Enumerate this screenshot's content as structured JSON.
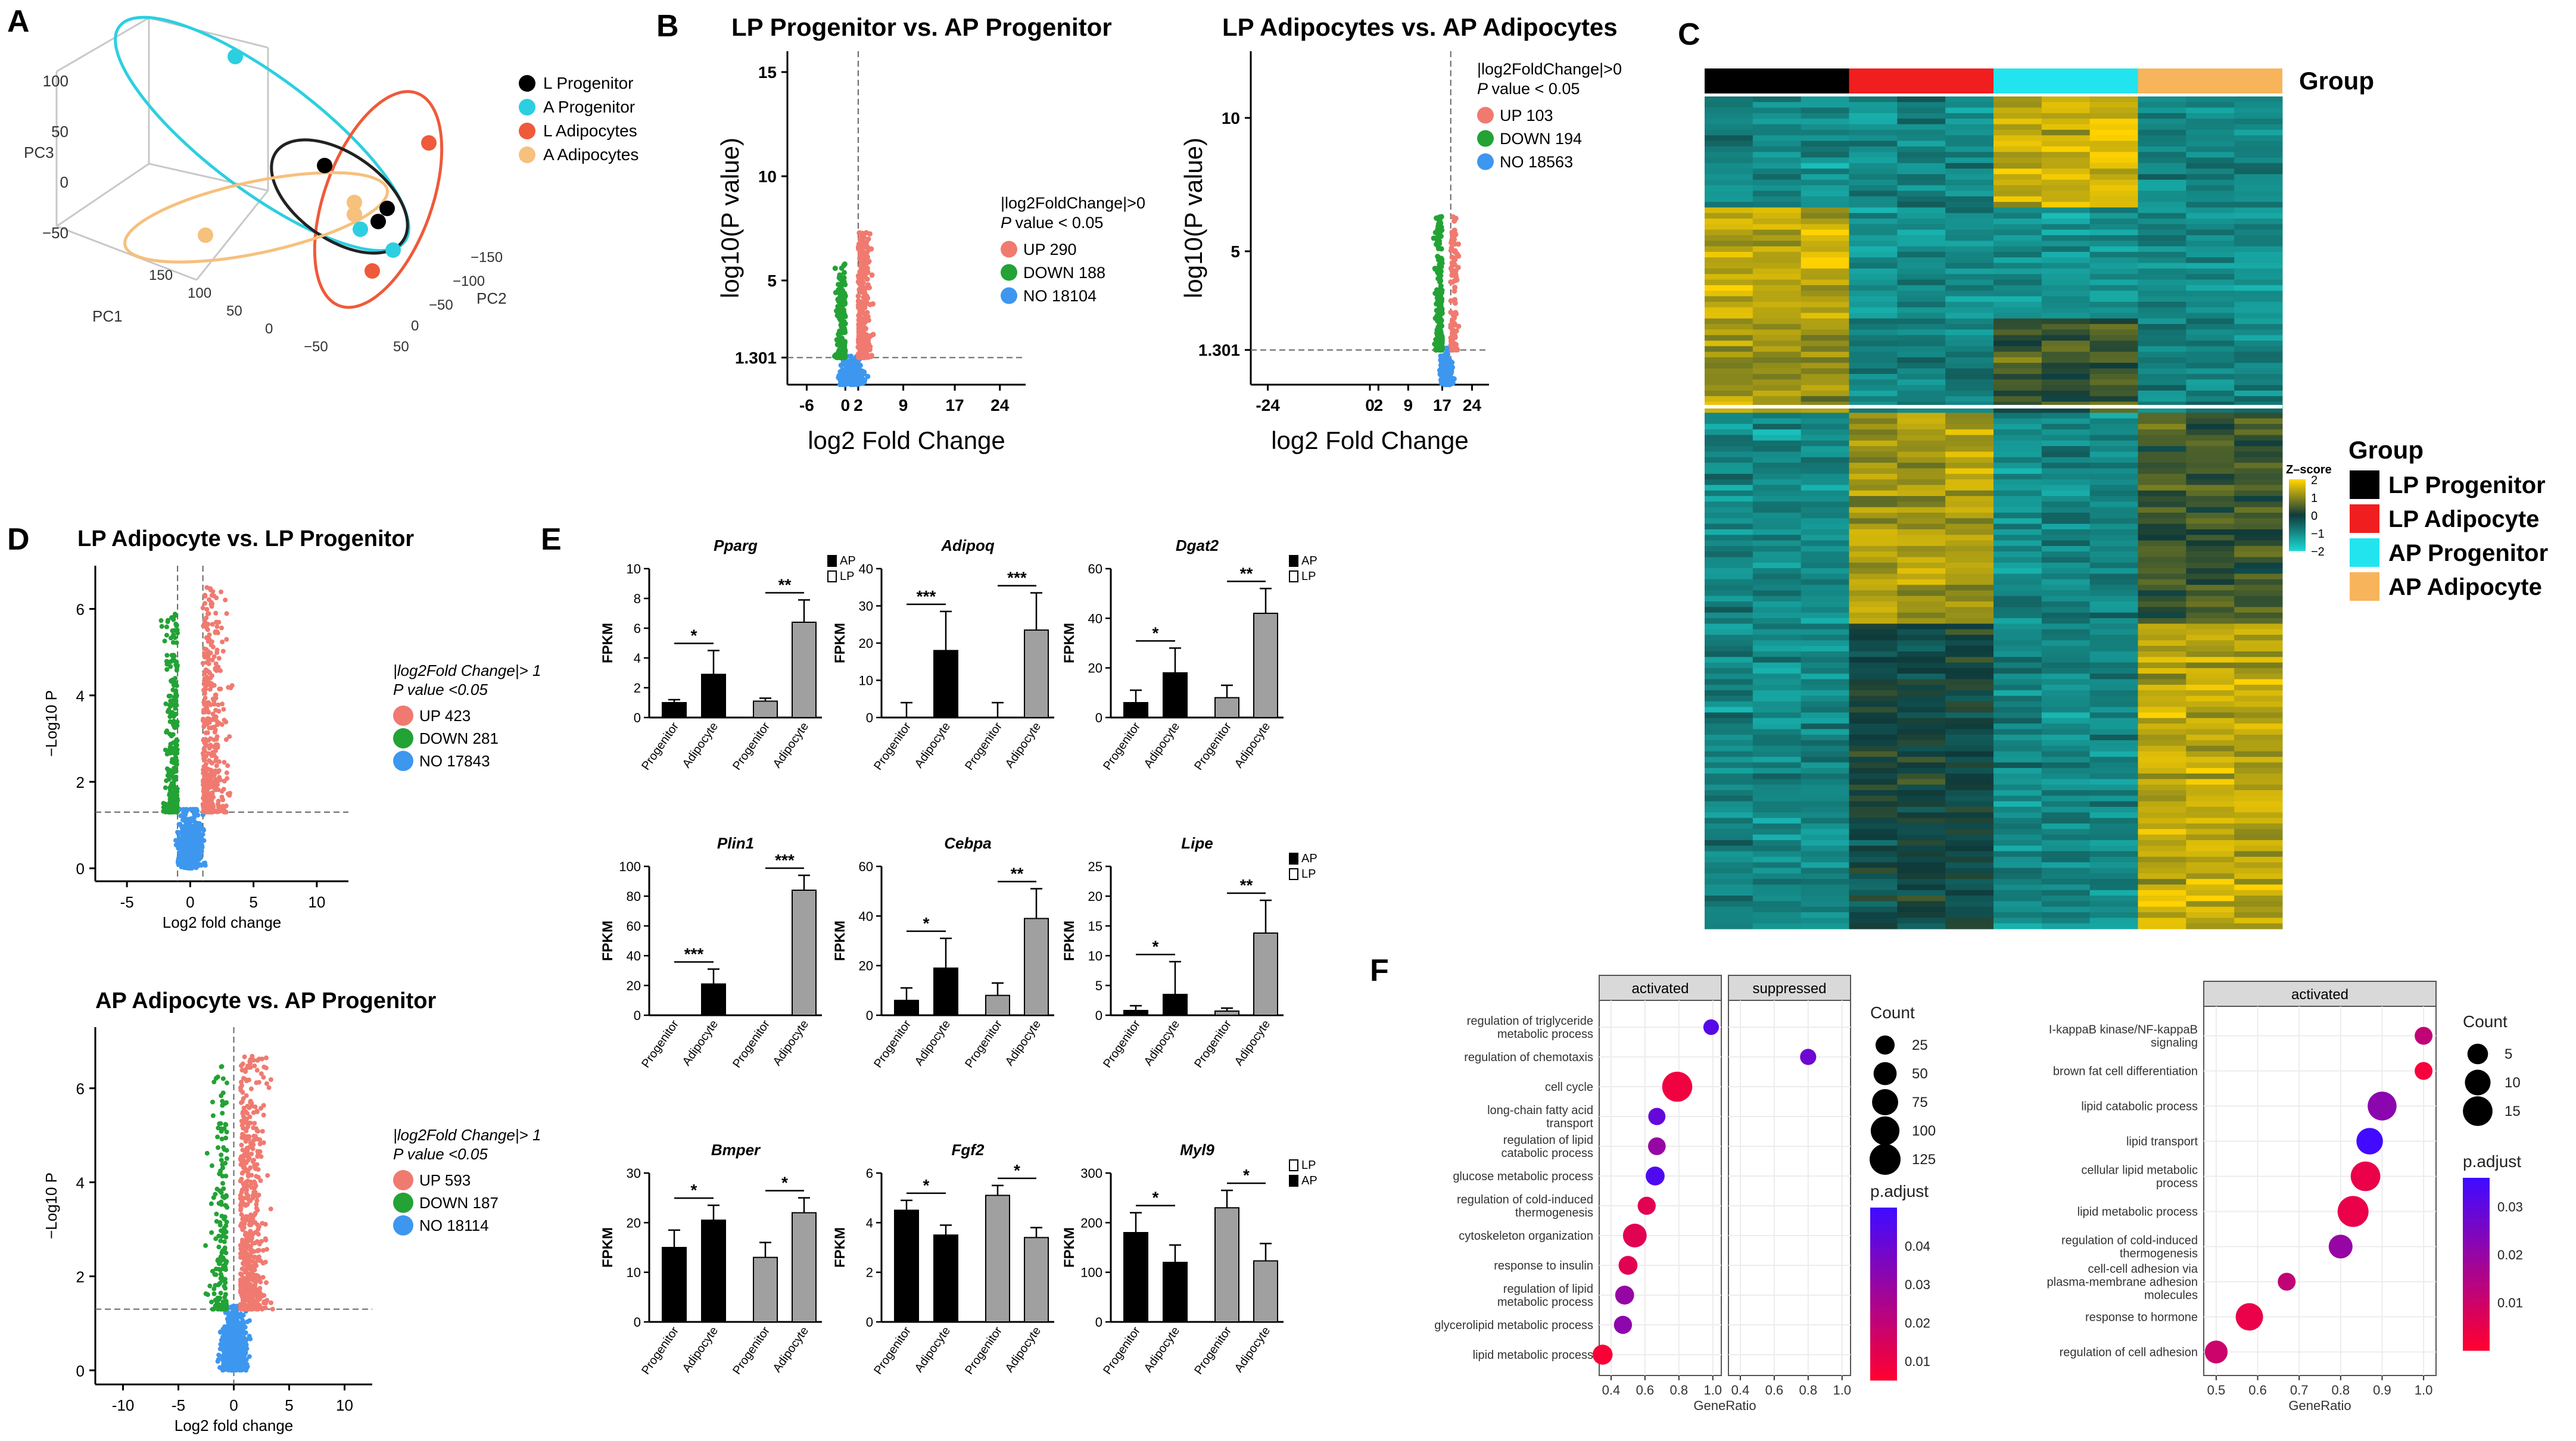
{
  "panels": {
    "A": "A",
    "B": "B",
    "C": "C",
    "D": "D",
    "E": "E",
    "F": "F"
  },
  "colors": {
    "up": "#f07a70",
    "down": "#23a235",
    "no": "#3d97ef",
    "lp_prog": "#000000",
    "lp_adipo": "#f01e1e",
    "ap_prog": "#22e4ee",
    "ap_adipo": "#f7b45b",
    "a_prog": "#2ccfe0",
    "l_adipo": "#ee5a3a",
    "a_adipo": "#f6c07d",
    "heat_low": "#1bd4cf",
    "heat_mid": "#0f3a3a",
    "heat_high": "#ffd200"
  },
  "chart_data": [
    {
      "id": "A",
      "type": "scatter",
      "xlabel": "PC1",
      "ylabel": "PC3",
      "zlabel": "PC2",
      "pc3_ticks": [
        "100",
        "50",
        "0",
        "−50"
      ],
      "pc1_ticks": [
        "150",
        "100",
        "50",
        "0",
        "−50"
      ],
      "pc2_ticks": [
        "−150",
        "−100",
        "−50",
        "0",
        "50"
      ],
      "legend": [
        "L Progenitor",
        "A Progenitor",
        "L Adipocytes",
        "A Adipocytes"
      ],
      "series": [
        {
          "name": "L Progenitor",
          "color": "#000000"
        },
        {
          "name": "A Progenitor",
          "color": "#2ccfe0"
        },
        {
          "name": "L Adipocytes",
          "color": "#ee5a3a"
        },
        {
          "name": "A Adipocytes",
          "color": "#f6c07d"
        }
      ]
    },
    {
      "id": "B1",
      "type": "scatter",
      "title": "LP Progenitor vs. AP Progenitor",
      "xlabel": "log2 Fold Change",
      "ylabel": "log10(P value)",
      "xticks": [
        "-6",
        "0",
        "2",
        "9",
        "17",
        "24"
      ],
      "xtick_values": [
        -6,
        0,
        2,
        9,
        17,
        24
      ],
      "yticks": [
        "1.301",
        "5",
        "10",
        "15"
      ],
      "ytick_values": [
        1.301,
        5,
        10,
        15
      ],
      "xlim": [
        -9,
        28
      ],
      "ylim": [
        0,
        16
      ],
      "legend": {
        "header": "|log2FoldChange|>0",
        "pline": "value < 0.05",
        "items": [
          "UP 290",
          "DOWN 188",
          "NO 18104"
        ]
      },
      "counts": {
        "up": 290,
        "down": 188,
        "no": 18104
      }
    },
    {
      "id": "B2",
      "type": "scatter",
      "title": "LP Adipocytes vs. AP Adipocytes",
      "xlabel": "log2 Fold Change",
      "ylabel": "log10(P value)",
      "xticks": [
        "-24",
        "0",
        "2",
        "9",
        "17",
        "24"
      ],
      "xtick_values": [
        -24,
        0,
        2,
        9,
        17,
        24
      ],
      "yticks": [
        "1.301",
        "5",
        "10"
      ],
      "ytick_values": [
        1.301,
        5,
        10
      ],
      "xlim": [
        -28,
        28
      ],
      "ylim": [
        0,
        12.5
      ],
      "legend": {
        "header": "|log2FoldChange|>0",
        "pline": "value < 0.05",
        "items": [
          "UP 103",
          "DOWN 194",
          "NO 18563"
        ]
      },
      "counts": {
        "up": 103,
        "down": 194,
        "no": 18563
      }
    },
    {
      "id": "C",
      "type": "heatmap",
      "group_label": "Group",
      "groups": [
        "LP Progenitor",
        "LP Adipocyte",
        "AP Progenitor",
        "AP Adipocyte"
      ],
      "scale_title": "Z–score",
      "scale_ticks": [
        "2",
        "1",
        "0",
        "−1",
        "−2"
      ]
    },
    {
      "id": "D1",
      "type": "scatter",
      "title": "LP Adipocyte vs. LP Progenitor",
      "xlabel": "Log2 fold change",
      "ylabel": "−Log10 P",
      "xticks": [
        "-5",
        "0",
        "5",
        "10"
      ],
      "yticks": [
        "0",
        "2",
        "4",
        "6"
      ],
      "xlim": [
        -7.5,
        12.5
      ],
      "ylim": [
        -0.3,
        7
      ],
      "legend": {
        "header": "|log2Fold Change|> 1",
        "pline": "value <0.05",
        "items": [
          "UP 423",
          "DOWN 281",
          "NO 17843"
        ]
      },
      "counts": {
        "up": 423,
        "down": 281,
        "no": 17843
      }
    },
    {
      "id": "D2",
      "type": "scatter",
      "title": "AP Adipocyte vs. AP Progenitor",
      "xlabel": "Log2 fold change",
      "ylabel": "−Log10 P",
      "xticks": [
        "-10",
        "-5",
        "0",
        "5",
        "10"
      ],
      "yticks": [
        "0",
        "2",
        "4",
        "6"
      ],
      "xlim": [
        -12.5,
        12.5
      ],
      "ylim": [
        -0.3,
        7.3
      ],
      "legend": {
        "header": "|log2Fold Change|> 1",
        "pline": "value <0.05",
        "items": [
          "UP 593",
          "DOWN 187",
          "NO 18114"
        ]
      },
      "counts": {
        "up": 593,
        "down": 187,
        "no": 18114
      }
    },
    {
      "id": "E",
      "type": "bar",
      "ylabel": "FPKM",
      "categories": [
        "Progenitor",
        "Adipocyte",
        "Progenitor",
        "Adipocyte"
      ],
      "legend_AP_LP": [
        "AP",
        "LP"
      ],
      "legend_LP_AP": [
        "LP",
        "AP"
      ],
      "genes": [
        {
          "name": "Pparg",
          "ylim": [
            0,
            10
          ],
          "yticks": [
            "0",
            "2",
            "4",
            "6",
            "8",
            "10"
          ],
          "values": [
            1.0,
            2.9,
            1.1,
            6.4
          ],
          "errors": [
            0.2,
            1.6,
            0.2,
            1.5
          ],
          "sig": [
            "*",
            "**"
          ],
          "legend": "AP_LP"
        },
        {
          "name": "Adipoq",
          "ylim": [
            0,
            40
          ],
          "yticks": [
            "0",
            "10",
            "20",
            "30",
            "40"
          ],
          "values": [
            0,
            18,
            0,
            23.5
          ],
          "errors": [
            4,
            10.5,
            4,
            10
          ],
          "sig": [
            "***",
            "***"
          ],
          "legend": "none"
        },
        {
          "name": "Dgat2",
          "ylim": [
            0,
            60
          ],
          "yticks": [
            "0",
            "20",
            "40",
            "60"
          ],
          "values": [
            6,
            18,
            8,
            42
          ],
          "errors": [
            5,
            10,
            5,
            10
          ],
          "sig": [
            "*",
            "**"
          ],
          "legend": "AP_LP"
        },
        {
          "name": "Plin1",
          "ylim": [
            0,
            100
          ],
          "yticks": [
            "0",
            "20",
            "40",
            "60",
            "80",
            "100"
          ],
          "values": [
            0,
            21,
            0,
            84
          ],
          "errors": [
            0,
            10,
            0,
            10
          ],
          "sig": [
            "***",
            "***"
          ],
          "legend": "none"
        },
        {
          "name": "Cebpa",
          "ylim": [
            0,
            60
          ],
          "yticks": [
            "0",
            "20",
            "40",
            "60"
          ],
          "values": [
            6,
            19,
            8,
            39
          ],
          "errors": [
            5,
            12,
            5,
            12
          ],
          "sig": [
            "*",
            "**"
          ],
          "legend": "none"
        },
        {
          "name": "Lipe",
          "ylim": [
            0,
            25
          ],
          "yticks": [
            "0",
            "5",
            "10",
            "15",
            "20",
            "25"
          ],
          "values": [
            0.8,
            3.5,
            0.7,
            13.8
          ],
          "errors": [
            0.8,
            5.5,
            0.5,
            5.5
          ],
          "sig": [
            "*",
            "**"
          ],
          "legend": "AP_LP"
        },
        {
          "name": "Bmper",
          "ylim": [
            0,
            30
          ],
          "yticks": [
            "0",
            "10",
            "20",
            "30"
          ],
          "values": [
            15,
            20.5,
            13,
            22
          ],
          "errors": [
            3.5,
            3,
            3,
            3
          ],
          "sig": [
            "*",
            "*"
          ],
          "legend": "none"
        },
        {
          "name": "Fgf2",
          "ylim": [
            0,
            6
          ],
          "yticks": [
            "0",
            "2",
            "4",
            "6"
          ],
          "values": [
            4.5,
            3.5,
            5.1,
            3.4
          ],
          "errors": [
            0.4,
            0.4,
            0.4,
            0.4
          ],
          "sig": [
            "*",
            "*"
          ],
          "legend": "none"
        },
        {
          "name": "Myl9",
          "ylim": [
            0,
            300
          ],
          "yticks": [
            "0",
            "100",
            "200",
            "300"
          ],
          "values": [
            180,
            120,
            230,
            123
          ],
          "errors": [
            40,
            35,
            35,
            35
          ],
          "sig": [
            "*",
            "*"
          ],
          "legend": "LP_AP"
        }
      ]
    },
    {
      "id": "F1",
      "type": "scatter",
      "facets": [
        "activated",
        "suppressed"
      ],
      "xlabel": "GeneRatio",
      "xticks": [
        "0.4",
        "0.6",
        "0.8",
        "1.0"
      ],
      "count_title": "Count",
      "count_ticks": [
        "25",
        "50",
        "75",
        "100",
        "125"
      ],
      "padj_title": "p.adjust",
      "padj_ticks": [
        "0.04",
        "0.03",
        "0.02",
        "0.01"
      ],
      "terms": [
        "regulation of triglyceride|metabolic process",
        "regulation of chemotaxis",
        "cell cycle",
        "long-chain fatty acid|transport",
        "regulation of lipid|catabolic process",
        "glucose metabolic process",
        "regulation of cold-induced|thermogenesis",
        "cytoskeleton organization",
        "response to insulin",
        "regulation of lipid|metabolic process",
        "glycerolipid metabolic process",
        "lipid metabolic process"
      ],
      "points": [
        {
          "facet": 0,
          "term": 0,
          "ratio": 0.99,
          "count": 10,
          "padj": 0.045
        },
        {
          "facet": 1,
          "term": 1,
          "ratio": 0.8,
          "count": 12,
          "padj": 0.04
        },
        {
          "facet": 0,
          "term": 2,
          "ratio": 0.79,
          "count": 115,
          "padj": 0.008
        },
        {
          "facet": 0,
          "term": 3,
          "ratio": 0.67,
          "count": 16,
          "padj": 0.042
        },
        {
          "facet": 0,
          "term": 4,
          "ratio": 0.67,
          "count": 18,
          "padj": 0.03
        },
        {
          "facet": 0,
          "term": 5,
          "ratio": 0.66,
          "count": 24,
          "padj": 0.047
        },
        {
          "facet": 0,
          "term": 6,
          "ratio": 0.61,
          "count": 20,
          "padj": 0.012
        },
        {
          "facet": 0,
          "term": 7,
          "ratio": 0.54,
          "count": 55,
          "padj": 0.012
        },
        {
          "facet": 0,
          "term": 8,
          "ratio": 0.5,
          "count": 24,
          "padj": 0.012
        },
        {
          "facet": 0,
          "term": 9,
          "ratio": 0.48,
          "count": 24,
          "padj": 0.03
        },
        {
          "facet": 0,
          "term": 10,
          "ratio": 0.47,
          "count": 20,
          "padj": 0.032
        },
        {
          "facet": 0,
          "term": 11,
          "ratio": 0.35,
          "count": 30,
          "padj": 0.006
        }
      ]
    },
    {
      "id": "F2",
      "type": "scatter",
      "facets": [
        "activated"
      ],
      "xlabel": "GeneRatio",
      "xticks": [
        "0.5",
        "0.6",
        "0.7",
        "0.8",
        "0.9",
        "1.0"
      ],
      "count_title": "Count",
      "count_ticks": [
        "5",
        "10",
        "15"
      ],
      "padj_title": "p.adjust",
      "padj_ticks": [
        "0.03",
        "0.02",
        "0.01"
      ],
      "terms": [
        "I-kappaB kinase/NF-kappaB|signaling",
        "brown fat cell differentiation",
        "lipid catabolic process",
        "lipid transport",
        "cellular lipid metabolic|process",
        "lipid metabolic process",
        "regulation of cold-induced|thermogenesis",
        "cell-cell adhesion via|plasma-membrane adhesion|molecules",
        "response to hormone",
        "regulation of cell adhesion"
      ],
      "points": [
        {
          "term": 0,
          "ratio": 1.0,
          "count": 3,
          "padj": 0.012
        },
        {
          "term": 1,
          "ratio": 1.0,
          "count": 3,
          "padj": 0.002
        },
        {
          "term": 2,
          "ratio": 0.9,
          "count": 14,
          "padj": 0.022
        },
        {
          "term": 3,
          "ratio": 0.87,
          "count": 11,
          "padj": 0.036
        },
        {
          "term": 4,
          "ratio": 0.86,
          "count": 15,
          "padj": 0.004
        },
        {
          "term": 5,
          "ratio": 0.83,
          "count": 17,
          "padj": 0.004
        },
        {
          "term": 6,
          "ratio": 0.8,
          "count": 8,
          "padj": 0.02
        },
        {
          "term": 7,
          "ratio": 0.67,
          "count": 3,
          "padj": 0.012
        },
        {
          "term": 8,
          "ratio": 0.58,
          "count": 12,
          "padj": 0.004
        },
        {
          "term": 9,
          "ratio": 0.5,
          "count": 7,
          "padj": 0.01
        }
      ]
    }
  ]
}
